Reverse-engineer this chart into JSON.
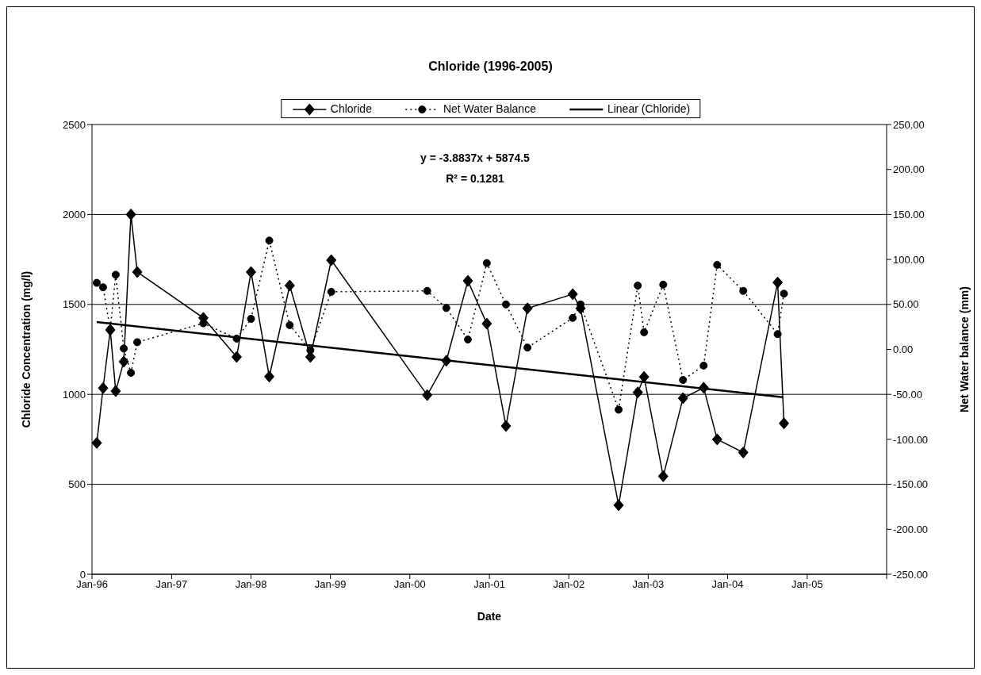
{
  "chart_data": {
    "type": "line",
    "title": "Chloride (1996-2005)",
    "xlabel": "Date",
    "ylabel": "Chloride Concentration (mg/l)",
    "y2label": "Net Water balance (mm)",
    "annotations": [
      "y = -3.8837x + 5874.5",
      "R² = 0.1281"
    ],
    "x": [
      "1996-01-23",
      "1996-02-21",
      "1996-03-25",
      "1996-04-19",
      "1996-05-26",
      "1996-06-28",
      "1996-07-27",
      "1997-05-27",
      "1997-10-27",
      "1998-01-01",
      "1998-03-26",
      "1998-06-28",
      "1998-10-01",
      "1999-01-05",
      "2000-03-21",
      "2000-06-17",
      "2000-09-24",
      "2000-12-20",
      "2001-03-18",
      "2001-06-25",
      "2002-01-19",
      "2002-02-24",
      "2002-08-18",
      "2002-11-14",
      "2002-12-13",
      "2003-03-11",
      "2003-06-10",
      "2003-09-13",
      "2003-11-14",
      "2004-03-13",
      "2004-08-18",
      "2004-09-16"
    ],
    "series": [
      {
        "name": "Chloride",
        "color": "#000000",
        "marker": "diamond",
        "line_style": "solid",
        "values": [
          730,
          1035,
          1358,
          1018,
          1182,
          2000,
          1680,
          1425,
          1208,
          1680,
          1099,
          1605,
          1208,
          1746,
          996,
          1187,
          1631,
          1393,
          824,
          1478,
          1557,
          1478,
          384,
          1011,
          1097,
          545,
          979,
          1037,
          750,
          677,
          1622,
          839
        ]
      },
      {
        "name": "Net Water Balance",
        "color": "#000000",
        "marker": "circle",
        "line_style": "dotted",
        "axis": "y2",
        "values": [
          74,
          69,
          22,
          83,
          1,
          -26,
          8,
          29,
          12,
          34,
          121,
          27,
          -1,
          64,
          65,
          46,
          11,
          96,
          50,
          2,
          35,
          50,
          -67,
          71,
          19,
          72,
          -34,
          -18,
          94,
          65,
          17,
          62
        ]
      },
      {
        "name": "Linear (Chloride)",
        "color": "#000000",
        "marker": "none",
        "line_style": "solid",
        "x": [
          "1996-01-23",
          "2004-09-10"
        ],
        "values": [
          1402,
          984
        ]
      }
    ],
    "xlim": [
      "1996-01-01",
      "2006-01-01"
    ],
    "xticks": [
      {
        "value": "1996-01",
        "label": "Jan-96"
      },
      {
        "value": "1997-01",
        "label": "Jan-97"
      },
      {
        "value": "1998-01",
        "label": "Jan-98"
      },
      {
        "value": "1999-01",
        "label": "Jan-99"
      },
      {
        "value": "2000-01",
        "label": "Jan-00"
      },
      {
        "value": "2001-01",
        "label": "Jan-01"
      },
      {
        "value": "2002-01",
        "label": "Jan-02"
      },
      {
        "value": "2003-01",
        "label": "Jan-03"
      },
      {
        "value": "2004-01",
        "label": "Jan-04"
      },
      {
        "value": "2005-01",
        "label": "Jan-05"
      },
      {
        "value": "2006-01",
        "label": null
      }
    ],
    "ylim": [
      0,
      2500
    ],
    "yticks": [
      0,
      500,
      1000,
      1500,
      2000,
      2500
    ],
    "y2lim": [
      -250,
      250
    ],
    "y2ticks": [
      {
        "value": -250,
        "label": "-250.00"
      },
      {
        "value": -200,
        "label": "-200.00"
      },
      {
        "value": -150,
        "label": "-150.00"
      },
      {
        "value": -100,
        "label": "-100.00"
      },
      {
        "value": -50,
        "label": "-50.00"
      },
      {
        "value": 0,
        "label": "0.00"
      },
      {
        "value": 50,
        "label": "50.00"
      },
      {
        "value": 100,
        "label": "100.00"
      },
      {
        "value": 150,
        "label": "150.00"
      },
      {
        "value": 200,
        "label": "200.00"
      },
      {
        "value": 250,
        "label": "250.00"
      }
    ],
    "grid": "y",
    "legend": "top"
  }
}
